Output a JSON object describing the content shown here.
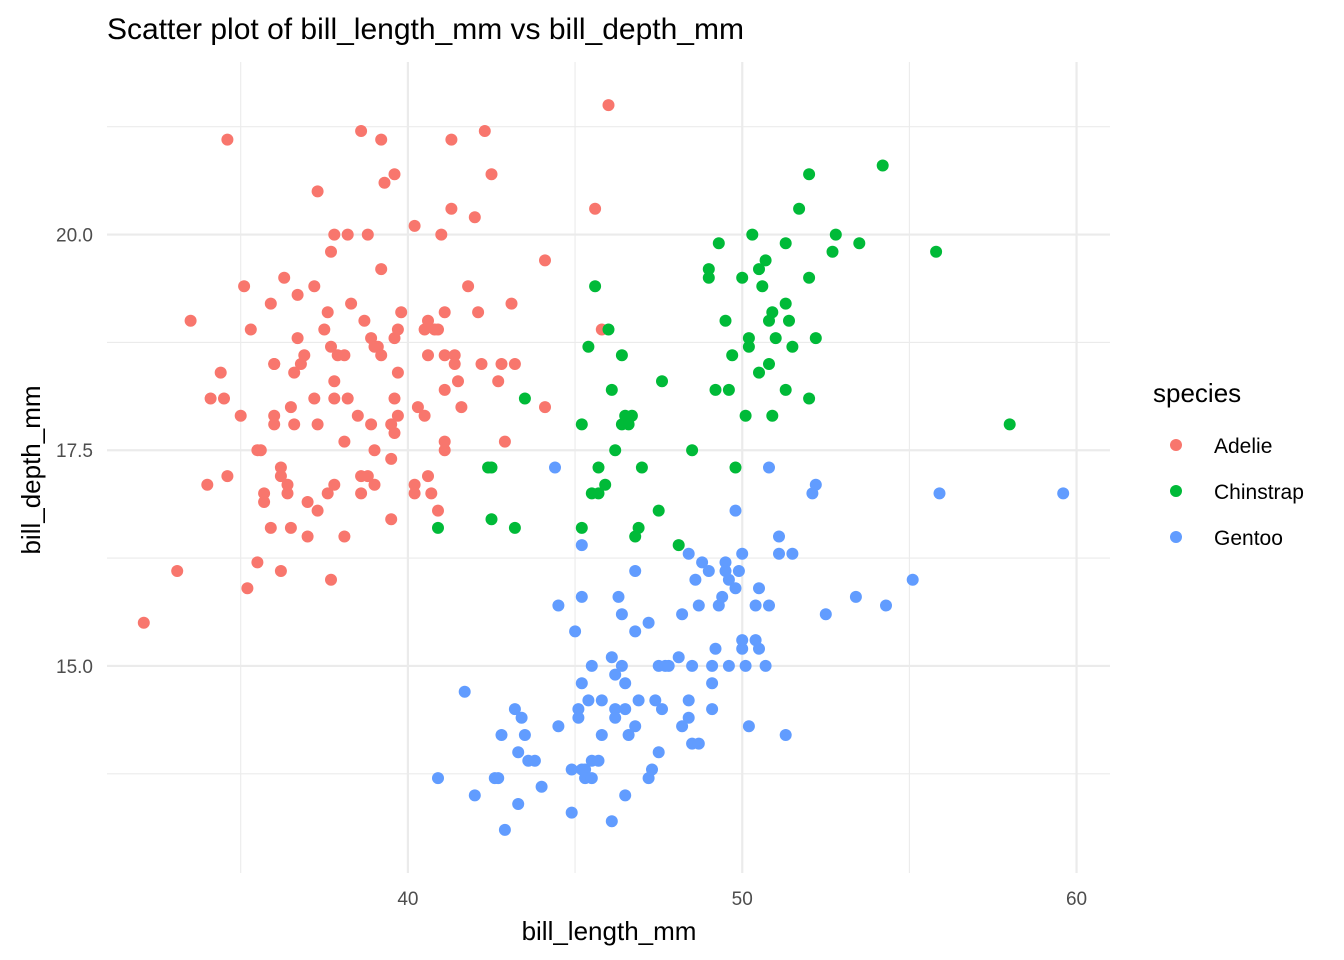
{
  "chart_data": {
    "type": "scatter",
    "title": "Scatter plot of bill_length_mm vs bill_depth_mm",
    "xlabel": "bill_length_mm",
    "ylabel": "bill_depth_mm",
    "xlim": [
      31.0,
      61.0
    ],
    "ylim": [
      12.6,
      22.0
    ],
    "x_ticks": [
      40,
      50,
      60
    ],
    "x_tick_labels": [
      "40",
      "50",
      "60"
    ],
    "x_minor_ticks": [
      35,
      45,
      55
    ],
    "y_ticks": [
      15.0,
      17.5,
      20.0
    ],
    "y_tick_labels": [
      "15.0",
      "17.5",
      "20.0"
    ],
    "y_minor_ticks": [
      13.75,
      16.25,
      18.75,
      21.25
    ],
    "grid": true,
    "legend": {
      "title": "species",
      "position": "right"
    },
    "series": [
      {
        "name": "Adelie",
        "color": "#F8766D",
        "points": [
          [
            32.1,
            15.5
          ],
          [
            33.1,
            16.1
          ],
          [
            33.5,
            19.0
          ],
          [
            34.0,
            17.1
          ],
          [
            34.1,
            18.1
          ],
          [
            34.4,
            18.4
          ],
          [
            34.5,
            18.1
          ],
          [
            34.6,
            21.1
          ],
          [
            34.6,
            17.2
          ],
          [
            35.0,
            17.9
          ],
          [
            35.1,
            19.4
          ],
          [
            35.2,
            15.9
          ],
          [
            35.3,
            18.9
          ],
          [
            35.5,
            16.2
          ],
          [
            35.5,
            17.5
          ],
          [
            35.6,
            17.5
          ],
          [
            35.7,
            16.9
          ],
          [
            35.7,
            17.0
          ],
          [
            35.9,
            19.2
          ],
          [
            35.9,
            16.6
          ],
          [
            36.0,
            18.5
          ],
          [
            36.0,
            17.9
          ],
          [
            36.0,
            17.8
          ],
          [
            36.0,
            18.5
          ],
          [
            36.2,
            16.1
          ],
          [
            36.2,
            17.2
          ],
          [
            36.2,
            17.3
          ],
          [
            36.3,
            19.5
          ],
          [
            36.4,
            17.0
          ],
          [
            36.4,
            17.1
          ],
          [
            36.5,
            18.0
          ],
          [
            36.5,
            16.6
          ],
          [
            36.6,
            17.8
          ],
          [
            36.6,
            18.4
          ],
          [
            36.7,
            19.3
          ],
          [
            36.7,
            18.8
          ],
          [
            36.8,
            18.5
          ],
          [
            36.9,
            18.6
          ],
          [
            37.0,
            16.9
          ],
          [
            37.0,
            16.5
          ],
          [
            37.2,
            18.1
          ],
          [
            37.2,
            19.4
          ],
          [
            37.3,
            20.5
          ],
          [
            37.3,
            17.8
          ],
          [
            37.3,
            16.8
          ],
          [
            37.5,
            18.9
          ],
          [
            37.6,
            19.1
          ],
          [
            37.6,
            17.0
          ],
          [
            37.7,
            18.7
          ],
          [
            37.7,
            19.8
          ],
          [
            37.7,
            16.0
          ],
          [
            37.8,
            18.3
          ],
          [
            37.8,
            17.1
          ],
          [
            37.8,
            18.1
          ],
          [
            37.8,
            20.0
          ],
          [
            37.9,
            18.6
          ],
          [
            38.1,
            18.6
          ],
          [
            38.1,
            16.5
          ],
          [
            38.1,
            17.6
          ],
          [
            38.2,
            18.1
          ],
          [
            38.2,
            20.0
          ],
          [
            38.3,
            19.2
          ],
          [
            38.5,
            17.9
          ],
          [
            38.6,
            21.2
          ],
          [
            38.6,
            17.2
          ],
          [
            38.6,
            17.0
          ],
          [
            38.7,
            19.0
          ],
          [
            38.8,
            17.2
          ],
          [
            38.8,
            20.0
          ],
          [
            38.9,
            18.8
          ],
          [
            38.9,
            17.8
          ],
          [
            39.0,
            18.7
          ],
          [
            39.0,
            17.5
          ],
          [
            39.0,
            17.1
          ],
          [
            39.1,
            18.7
          ],
          [
            39.2,
            19.6
          ],
          [
            39.2,
            21.1
          ],
          [
            39.2,
            18.6
          ],
          [
            39.3,
            20.6
          ],
          [
            39.5,
            17.4
          ],
          [
            39.5,
            16.7
          ],
          [
            39.5,
            17.8
          ],
          [
            39.6,
            20.7
          ],
          [
            39.6,
            18.8
          ],
          [
            39.6,
            17.7
          ],
          [
            39.6,
            18.1
          ],
          [
            39.7,
            18.9
          ],
          [
            39.7,
            17.9
          ],
          [
            39.7,
            18.4
          ],
          [
            39.8,
            19.1
          ],
          [
            40.2,
            20.1
          ],
          [
            40.2,
            17.1
          ],
          [
            40.2,
            17.0
          ],
          [
            40.3,
            18.0
          ],
          [
            40.5,
            18.9
          ],
          [
            40.5,
            17.9
          ],
          [
            40.6,
            19.0
          ],
          [
            40.6,
            18.6
          ],
          [
            40.6,
            17.2
          ],
          [
            40.7,
            17.0
          ],
          [
            40.8,
            18.9
          ],
          [
            40.9,
            18.9
          ],
          [
            40.9,
            16.8
          ],
          [
            41.0,
            20.0
          ],
          [
            41.1,
            18.2
          ],
          [
            41.1,
            19.1
          ],
          [
            41.1,
            18.6
          ],
          [
            41.1,
            17.5
          ],
          [
            41.1,
            17.6
          ],
          [
            41.3,
            21.1
          ],
          [
            41.3,
            20.3
          ],
          [
            41.4,
            18.6
          ],
          [
            41.4,
            18.5
          ],
          [
            41.5,
            18.3
          ],
          [
            41.6,
            18.0
          ],
          [
            41.8,
            19.4
          ],
          [
            42.0,
            20.2
          ],
          [
            42.1,
            19.1
          ],
          [
            42.2,
            18.5
          ],
          [
            42.3,
            21.2
          ],
          [
            42.5,
            20.7
          ],
          [
            42.7,
            18.3
          ],
          [
            42.8,
            18.5
          ],
          [
            42.9,
            17.6
          ],
          [
            43.1,
            19.2
          ],
          [
            43.2,
            18.5
          ],
          [
            44.1,
            19.7
          ],
          [
            44.1,
            18.0
          ],
          [
            45.6,
            20.3
          ],
          [
            45.8,
            18.9
          ],
          [
            46.0,
            21.5
          ]
        ]
      },
      {
        "name": "Chinstrap",
        "color": "#00BA38",
        "points": [
          [
            40.9,
            16.6
          ],
          [
            42.4,
            17.3
          ],
          [
            42.5,
            16.7
          ],
          [
            42.5,
            17.3
          ],
          [
            43.2,
            16.6
          ],
          [
            43.5,
            18.1
          ],
          [
            45.2,
            17.8
          ],
          [
            45.2,
            16.6
          ],
          [
            45.4,
            18.7
          ],
          [
            45.5,
            17.0
          ],
          [
            45.6,
            19.4
          ],
          [
            45.7,
            17.3
          ],
          [
            45.7,
            17.0
          ],
          [
            45.9,
            17.1
          ],
          [
            46.0,
            18.9
          ],
          [
            46.1,
            18.2
          ],
          [
            46.2,
            17.5
          ],
          [
            46.4,
            18.6
          ],
          [
            46.4,
            17.8
          ],
          [
            46.5,
            17.9
          ],
          [
            46.6,
            17.8
          ],
          [
            46.7,
            17.9
          ],
          [
            46.8,
            16.5
          ],
          [
            46.9,
            16.6
          ],
          [
            47.0,
            17.3
          ],
          [
            47.5,
            16.8
          ],
          [
            47.6,
            18.3
          ],
          [
            48.1,
            16.4
          ],
          [
            48.5,
            17.5
          ],
          [
            49.0,
            19.5
          ],
          [
            49.0,
            19.6
          ],
          [
            49.2,
            18.2
          ],
          [
            49.3,
            19.9
          ],
          [
            49.5,
            19.0
          ],
          [
            49.6,
            18.2
          ],
          [
            49.7,
            18.6
          ],
          [
            49.8,
            17.3
          ],
          [
            50.0,
            19.5
          ],
          [
            50.1,
            17.9
          ],
          [
            50.2,
            18.8
          ],
          [
            50.2,
            18.7
          ],
          [
            50.3,
            20.0
          ],
          [
            50.5,
            18.4
          ],
          [
            50.5,
            19.6
          ],
          [
            50.6,
            19.4
          ],
          [
            50.7,
            19.7
          ],
          [
            50.8,
            19.0
          ],
          [
            50.8,
            18.5
          ],
          [
            50.9,
            19.1
          ],
          [
            50.9,
            17.9
          ],
          [
            51.0,
            18.8
          ],
          [
            51.3,
            18.2
          ],
          [
            51.3,
            19.9
          ],
          [
            51.3,
            19.2
          ],
          [
            51.4,
            19.0
          ],
          [
            51.5,
            18.7
          ],
          [
            51.7,
            20.3
          ],
          [
            52.0,
            19.5
          ],
          [
            52.0,
            18.1
          ],
          [
            52.0,
            20.7
          ],
          [
            52.2,
            18.8
          ],
          [
            52.7,
            19.8
          ],
          [
            52.8,
            20.0
          ],
          [
            53.5,
            19.9
          ],
          [
            54.2,
            20.8
          ],
          [
            55.8,
            19.8
          ],
          [
            58.0,
            17.8
          ]
        ]
      },
      {
        "name": "Gentoo",
        "color": "#619CFF",
        "points": [
          [
            40.9,
            13.7
          ],
          [
            41.7,
            14.7
          ],
          [
            42.0,
            13.5
          ],
          [
            42.6,
            13.7
          ],
          [
            42.7,
            13.7
          ],
          [
            42.8,
            14.2
          ],
          [
            42.9,
            13.1
          ],
          [
            43.2,
            14.5
          ],
          [
            43.3,
            14.0
          ],
          [
            43.3,
            13.4
          ],
          [
            43.4,
            14.4
          ],
          [
            43.5,
            14.2
          ],
          [
            43.6,
            13.9
          ],
          [
            43.8,
            13.9
          ],
          [
            44.0,
            13.6
          ],
          [
            44.4,
            17.3
          ],
          [
            44.5,
            14.3
          ],
          [
            44.5,
            15.7
          ],
          [
            44.9,
            13.8
          ],
          [
            44.9,
            13.3
          ],
          [
            45.0,
            15.4
          ],
          [
            45.1,
            14.5
          ],
          [
            45.1,
            14.4
          ],
          [
            45.2,
            14.8
          ],
          [
            45.2,
            13.8
          ],
          [
            45.2,
            16.4
          ],
          [
            45.2,
            15.8
          ],
          [
            45.3,
            13.8
          ],
          [
            45.3,
            13.7
          ],
          [
            45.4,
            14.6
          ],
          [
            45.5,
            15.0
          ],
          [
            45.5,
            13.9
          ],
          [
            45.5,
            13.7
          ],
          [
            45.7,
            13.9
          ],
          [
            45.8,
            14.6
          ],
          [
            45.8,
            14.2
          ],
          [
            46.1,
            15.1
          ],
          [
            46.1,
            13.2
          ],
          [
            46.2,
            14.5
          ],
          [
            46.2,
            14.9
          ],
          [
            46.2,
            14.4
          ],
          [
            46.3,
            15.8
          ],
          [
            46.4,
            15.6
          ],
          [
            46.4,
            15.0
          ],
          [
            46.5,
            14.8
          ],
          [
            46.5,
            14.5
          ],
          [
            46.5,
            13.5
          ],
          [
            46.6,
            14.2
          ],
          [
            46.8,
            15.4
          ],
          [
            46.8,
            14.3
          ],
          [
            46.8,
            16.1
          ],
          [
            46.9,
            14.6
          ],
          [
            47.2,
            15.5
          ],
          [
            47.2,
            13.7
          ],
          [
            47.3,
            13.8
          ],
          [
            47.4,
            14.6
          ],
          [
            47.5,
            14.0
          ],
          [
            47.5,
            15.0
          ],
          [
            47.6,
            14.5
          ],
          [
            47.7,
            15.0
          ],
          [
            47.8,
            15.0
          ],
          [
            48.1,
            15.1
          ],
          [
            48.2,
            14.3
          ],
          [
            48.2,
            15.6
          ],
          [
            48.4,
            14.4
          ],
          [
            48.4,
            14.6
          ],
          [
            48.4,
            16.3
          ],
          [
            48.5,
            15.0
          ],
          [
            48.5,
            14.1
          ],
          [
            48.6,
            16.0
          ],
          [
            48.7,
            14.1
          ],
          [
            48.7,
            15.7
          ],
          [
            48.8,
            16.2
          ],
          [
            49.0,
            16.1
          ],
          [
            49.1,
            14.8
          ],
          [
            49.1,
            14.5
          ],
          [
            49.1,
            15.0
          ],
          [
            49.2,
            15.2
          ],
          [
            49.3,
            15.7
          ],
          [
            49.4,
            15.8
          ],
          [
            49.5,
            16.2
          ],
          [
            49.5,
            16.1
          ],
          [
            49.6,
            16.0
          ],
          [
            49.6,
            15.0
          ],
          [
            49.8,
            15.9
          ],
          [
            49.8,
            16.8
          ],
          [
            49.9,
            16.1
          ],
          [
            50.0,
            16.3
          ],
          [
            50.0,
            15.2
          ],
          [
            50.0,
            15.3
          ],
          [
            50.1,
            15.0
          ],
          [
            50.2,
            14.3
          ],
          [
            50.4,
            15.7
          ],
          [
            50.4,
            15.3
          ],
          [
            50.5,
            15.9
          ],
          [
            50.5,
            15.2
          ],
          [
            50.7,
            15.0
          ],
          [
            50.8,
            17.3
          ],
          [
            50.8,
            15.7
          ],
          [
            51.1,
            16.5
          ],
          [
            51.1,
            16.3
          ],
          [
            51.3,
            14.2
          ],
          [
            51.5,
            16.3
          ],
          [
            52.1,
            17.0
          ],
          [
            52.2,
            17.1
          ],
          [
            52.5,
            15.6
          ],
          [
            53.4,
            15.8
          ],
          [
            54.3,
            15.7
          ],
          [
            55.1,
            16.0
          ],
          [
            55.9,
            17.0
          ],
          [
            59.6,
            17.0
          ]
        ]
      }
    ]
  }
}
